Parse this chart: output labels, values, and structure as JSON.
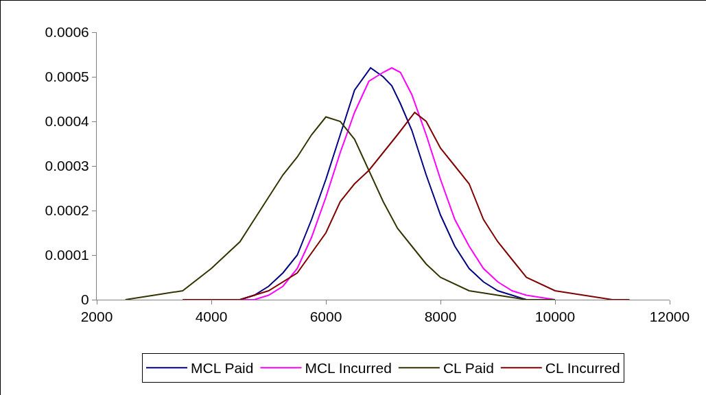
{
  "chart_data": {
    "type": "line",
    "legend": "bottom",
    "grid": false,
    "marker": "none",
    "line_style": "solid",
    "xlim": [
      2000,
      12000
    ],
    "xticks": [
      2000,
      4000,
      6000,
      8000,
      10000,
      12000
    ],
    "ylim": [
      0,
      0.0006
    ],
    "yticks": [
      0,
      0.0001,
      0.0002,
      0.0003,
      0.0004,
      0.0005,
      0.0006
    ],
    "series": [
      {
        "name": "MCL Paid",
        "color": "#000080",
        "x": [
          4300,
          4500,
          4750,
          5000,
          5250,
          5500,
          5750,
          6000,
          6250,
          6500,
          6780,
          7000,
          7150,
          7300,
          7500,
          7750,
          8000,
          8250,
          8500,
          8750,
          9000,
          9250,
          9500,
          10000
        ],
        "values": [
          0,
          0,
          1e-05,
          3e-05,
          6e-05,
          0.0001,
          0.00018,
          0.00027,
          0.00037,
          0.00047,
          0.00052,
          0.0005,
          0.00048,
          0.00044,
          0.00038,
          0.00028,
          0.00019,
          0.00012,
          7e-05,
          4e-05,
          2e-05,
          1e-05,
          0,
          0
        ]
      },
      {
        "name": "MCL Incurred",
        "color": "#ff00ff",
        "x": [
          4400,
          4750,
          5000,
          5250,
          5500,
          5750,
          6000,
          6250,
          6500,
          6750,
          7000,
          7150,
          7300,
          7500,
          7750,
          8000,
          8250,
          8500,
          8750,
          9000,
          9250,
          9500,
          10000
        ],
        "values": [
          0,
          0,
          1e-05,
          3e-05,
          7e-05,
          0.00014,
          0.00023,
          0.00033,
          0.00042,
          0.00049,
          0.00051,
          0.00052,
          0.00051,
          0.00046,
          0.00037,
          0.00027,
          0.00018,
          0.00012,
          7e-05,
          4e-05,
          2e-05,
          1e-05,
          0
        ]
      },
      {
        "name": "CL Paid",
        "color": "#333300",
        "x": [
          2500,
          3000,
          3500,
          4000,
          4250,
          4500,
          4750,
          5000,
          5250,
          5500,
          5750,
          6000,
          6250,
          6500,
          6750,
          7000,
          7250,
          7500,
          7750,
          8000,
          8500,
          9000,
          9500,
          10000
        ],
        "values": [
          0,
          1e-05,
          2e-05,
          7e-05,
          0.0001,
          0.00013,
          0.00018,
          0.00023,
          0.00028,
          0.00032,
          0.00037,
          0.00041,
          0.0004,
          0.00036,
          0.00029,
          0.00022,
          0.00016,
          0.00012,
          8e-05,
          5e-05,
          2e-05,
          1e-05,
          0,
          0
        ]
      },
      {
        "name": "CL Incurred",
        "color": "#800000",
        "x": [
          3500,
          4500,
          5000,
          5500,
          6000,
          6250,
          6500,
          6750,
          7000,
          7250,
          7550,
          7750,
          8000,
          8250,
          8500,
          8750,
          9000,
          9250,
          9500,
          10000,
          10500,
          11000,
          11300
        ],
        "values": [
          0,
          0,
          2e-05,
          6e-05,
          0.00015,
          0.00022,
          0.00026,
          0.00029,
          0.00033,
          0.00037,
          0.00042,
          0.0004,
          0.00034,
          0.0003,
          0.00026,
          0.00018,
          0.00013,
          9e-05,
          5e-05,
          2e-05,
          1e-05,
          0,
          0
        ]
      }
    ]
  }
}
